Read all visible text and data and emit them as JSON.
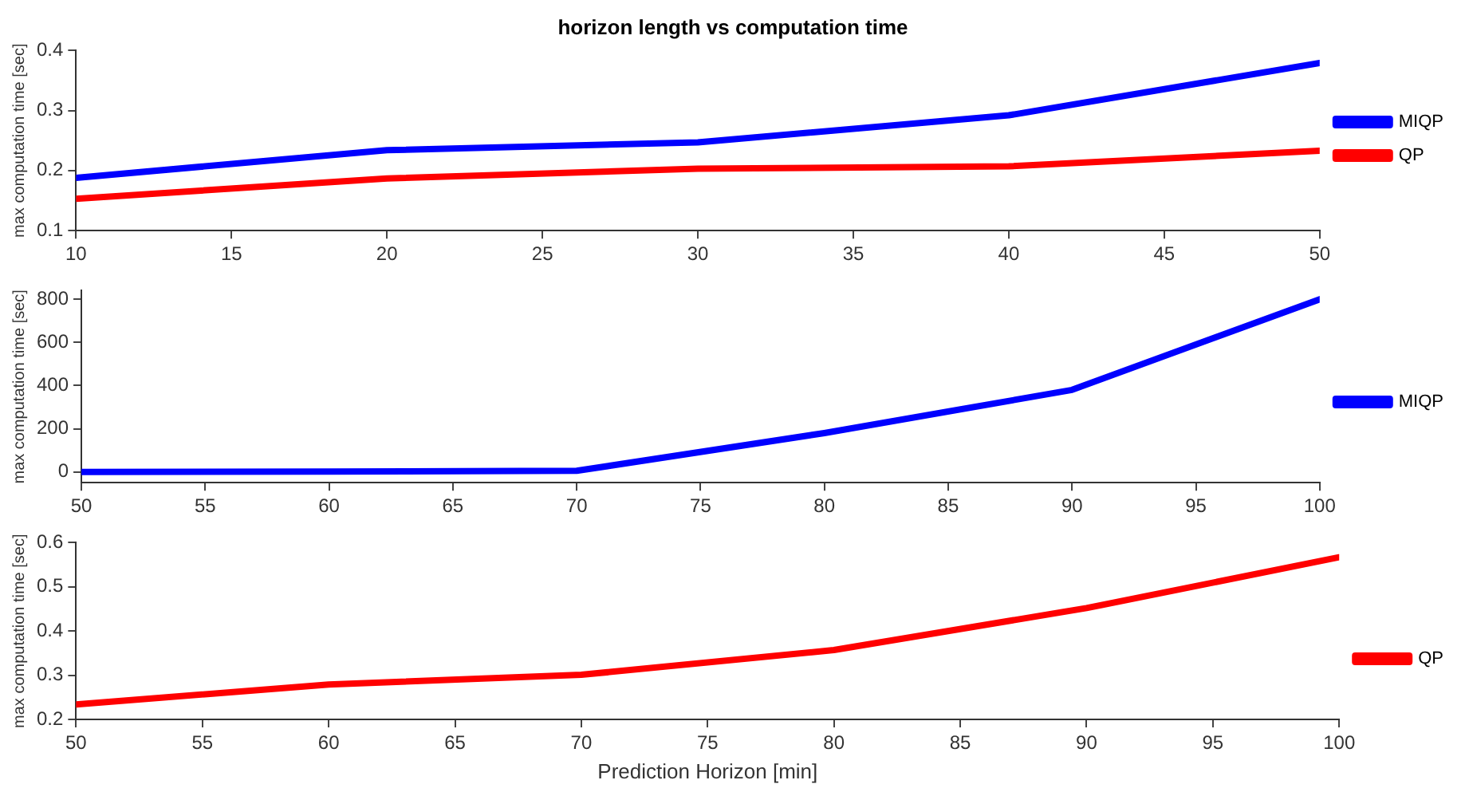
{
  "chart_data": [
    {
      "type": "line",
      "title": "horizon length vs computation time",
      "ylabel": "max computation time [sec]",
      "x": [
        10,
        20,
        30,
        40,
        50
      ],
      "xlim": [
        10,
        50
      ],
      "xticks": [
        10,
        15,
        20,
        25,
        30,
        35,
        40,
        45,
        50
      ],
      "ylim": [
        0.1,
        0.4
      ],
      "yticks": [
        0.1,
        0.2,
        0.3,
        0.4
      ],
      "grid": false,
      "legend": "right",
      "marker": "none",
      "line_style": "solid",
      "series": [
        {
          "name": "MIQP",
          "color": "#0000ff",
          "values": [
            0.188,
            0.234,
            0.247,
            0.292,
            0.379
          ]
        },
        {
          "name": "QP",
          "color": "#ff0000",
          "values": [
            0.153,
            0.187,
            0.203,
            0.207,
            0.233
          ]
        }
      ]
    },
    {
      "type": "line",
      "ylabel": "max computation time [sec]",
      "x": [
        50,
        60,
        70,
        80,
        90,
        100
      ],
      "xlim": [
        50,
        100
      ],
      "xticks": [
        50,
        55,
        60,
        65,
        70,
        75,
        80,
        85,
        90,
        95,
        100
      ],
      "ylim": [
        -50,
        840
      ],
      "yticks": [
        0,
        200,
        400,
        600,
        800
      ],
      "grid": false,
      "legend": "right",
      "marker": "none",
      "line_style": "solid",
      "series": [
        {
          "name": "MIQP",
          "color": "#0000ff",
          "values": [
            0,
            2,
            5,
            180,
            380,
            800
          ]
        }
      ]
    },
    {
      "type": "line",
      "xlabel": "Prediction Horizon [min]",
      "ylabel": "max computation time [sec]",
      "x": [
        50,
        60,
        70,
        80,
        90,
        100
      ],
      "xlim": [
        50,
        100
      ],
      "xticks": [
        50,
        55,
        60,
        65,
        70,
        75,
        80,
        85,
        90,
        95,
        100
      ],
      "ylim": [
        0.2,
        0.6
      ],
      "yticks": [
        0.2,
        0.3,
        0.4,
        0.5,
        0.6
      ],
      "grid": false,
      "legend": "right",
      "marker": "none",
      "line_style": "solid",
      "series": [
        {
          "name": "QP",
          "color": "#ff0000",
          "values": [
            0.234,
            0.279,
            0.301,
            0.357,
            0.452,
            0.567
          ]
        }
      ]
    }
  ]
}
